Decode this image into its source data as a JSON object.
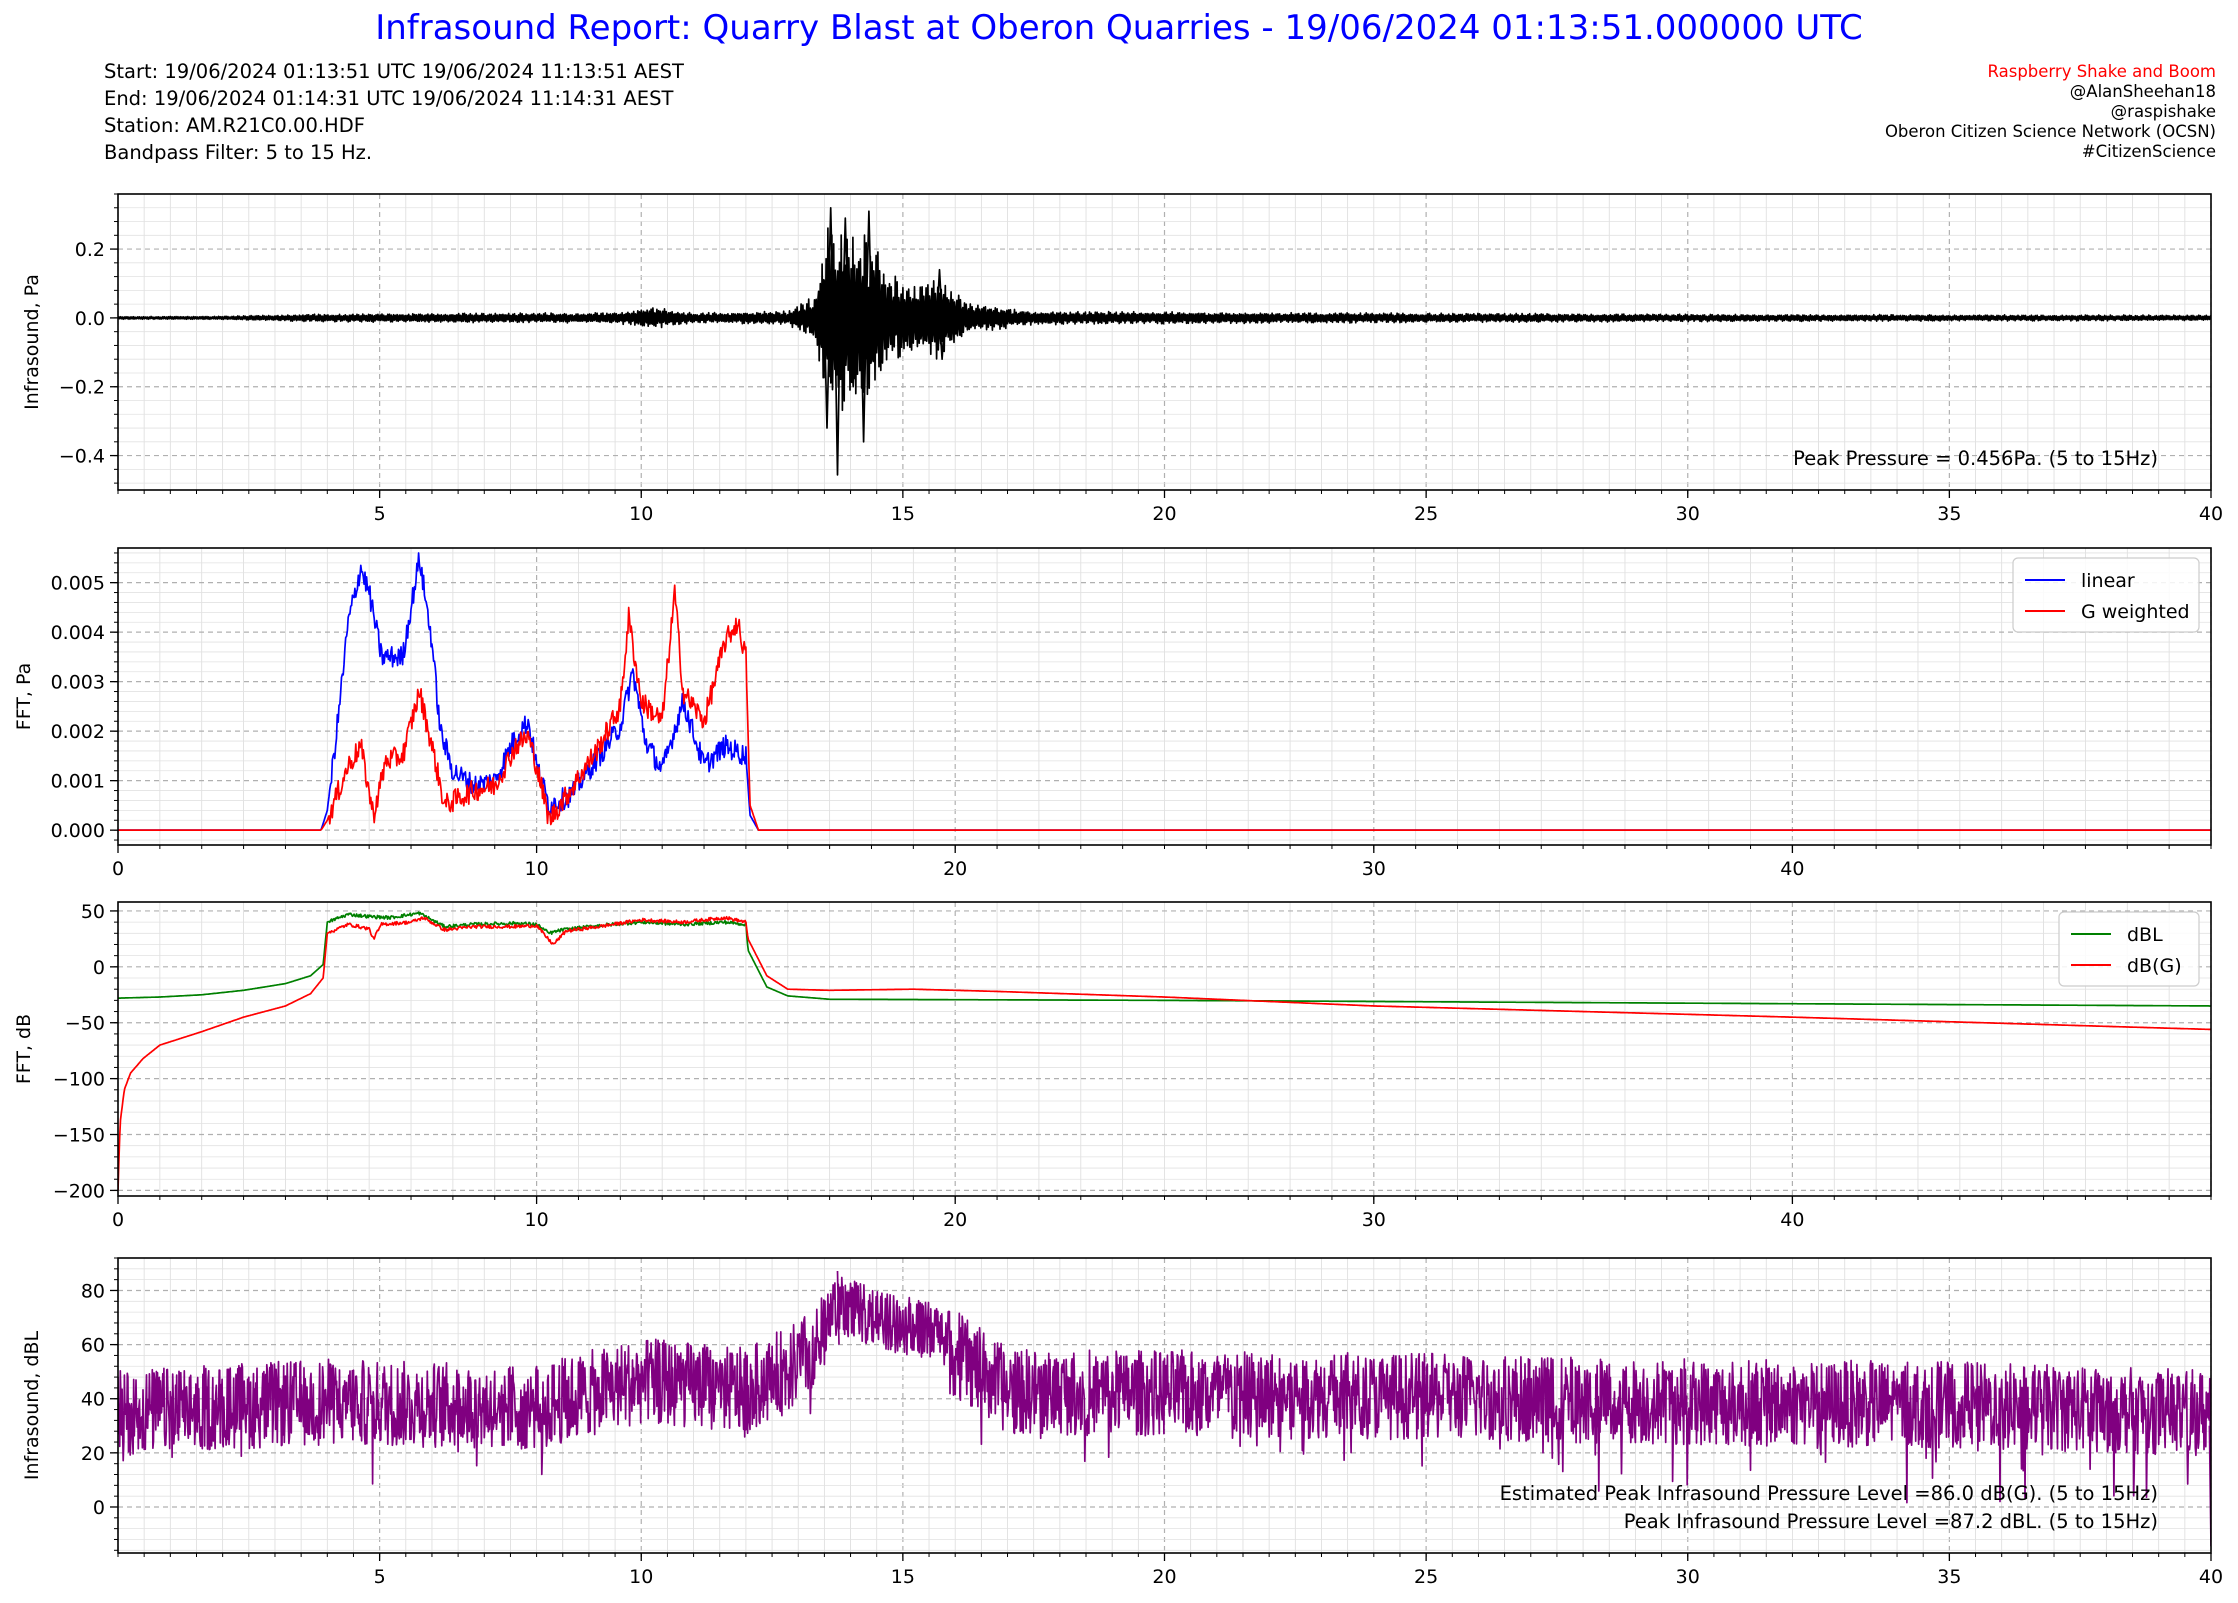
{
  "header": {
    "title": "Infrasound Report: Quarry Blast at Oberon Quarries - 19/06/2024 01:13:51.000000 UTC",
    "info_lines": [
      "Start: 19/06/2024 01:13:51 UTC   19/06/2024 11:13:51 AEST",
      "End: 19/06/2024 01:14:31 UTC   19/06/2024 11:14:31 AEST",
      "Station: AM.R21C0.00.HDF",
      "Bandpass Filter: 5 to 15 Hz."
    ],
    "credits": {
      "brand": "Raspberry Shake and Boom",
      "lines": [
        "@AlanSheehan18",
        "@raspishake",
        "Oberon Citizen Science Network (OCSN)",
        "#CitizenScience"
      ]
    }
  },
  "chart_data": [
    {
      "type": "line",
      "ylabel": "Infrasound, Pa",
      "xlim": [
        0,
        40
      ],
      "ylim": [
        -0.5,
        0.36
      ],
      "xticks": [
        5,
        10,
        15,
        20,
        25,
        30,
        35,
        40
      ],
      "yticks": [
        0.2,
        0.0,
        -0.2,
        -0.4
      ],
      "ytick_labels": [
        "0.2",
        "0.0",
        "−0.2",
        "−0.4"
      ],
      "grid": true,
      "series": [
        {
          "color": "#000000",
          "envelope": [
            [
              0,
              0.004
            ],
            [
              2,
              0.005
            ],
            [
              4,
              0.012
            ],
            [
              9.5,
              0.016
            ],
            [
              10.2,
              0.032
            ],
            [
              11,
              0.015
            ],
            [
              12.8,
              0.02
            ],
            [
              13.3,
              0.07
            ],
            [
              13.6,
              0.3
            ],
            [
              14,
              0.28
            ],
            [
              14.3,
              0.26
            ],
            [
              14.7,
              0.14
            ],
            [
              15.3,
              0.1
            ],
            [
              15.7,
              0.13
            ],
            [
              16.2,
              0.05
            ],
            [
              17.5,
              0.02
            ],
            [
              25,
              0.014
            ],
            [
              30,
              0.011
            ],
            [
              40,
              0.008
            ]
          ],
          "spikes": [
            [
              13.55,
              -0.32
            ],
            [
              13.62,
              0.32
            ],
            [
              13.75,
              -0.456
            ],
            [
              13.9,
              0.29
            ],
            [
              14.05,
              -0.2
            ],
            [
              14.25,
              -0.36
            ],
            [
              14.35,
              0.31
            ],
            [
              15.7,
              0.14
            ],
            [
              15.75,
              -0.12
            ]
          ]
        }
      ],
      "annotations": [
        "Peak Pressure = 0.456Pa. (5 to 15Hz)"
      ]
    },
    {
      "type": "line",
      "ylabel": "FFT, Pa",
      "xlim": [
        0,
        50
      ],
      "ylim": [
        -0.0003,
        0.0057
      ],
      "xticks": [
        0,
        10,
        20,
        30,
        40
      ],
      "yticks": [
        0.005,
        0.004,
        0.003,
        0.002,
        0.001,
        0.0
      ],
      "ytick_labels": [
        "0.005",
        "0.004",
        "0.003",
        "0.002",
        "0.001",
        "0.000"
      ],
      "grid": true,
      "legend": "top-right",
      "series": [
        {
          "name": "linear",
          "color": "#0000ff",
          "points": [
            [
              0,
              0
            ],
            [
              4.85,
              0
            ],
            [
              5.0,
              0.0004
            ],
            [
              5.2,
              0.0018
            ],
            [
              5.5,
              0.0042
            ],
            [
              5.8,
              0.0053
            ],
            [
              6.0,
              0.0048
            ],
            [
              6.3,
              0.0035
            ],
            [
              6.8,
              0.0035
            ],
            [
              7.2,
              0.0055
            ],
            [
              7.5,
              0.0038
            ],
            [
              7.7,
              0.002
            ],
            [
              8.0,
              0.0012
            ],
            [
              8.5,
              0.0009
            ],
            [
              9.0,
              0.001
            ],
            [
              9.5,
              0.0019
            ],
            [
              9.8,
              0.0022
            ],
            [
              10.0,
              0.0013
            ],
            [
              10.3,
              0.0005
            ],
            [
              10.8,
              0.0007
            ],
            [
              11.5,
              0.0015
            ],
            [
              12.0,
              0.0021
            ],
            [
              12.3,
              0.0032
            ],
            [
              12.6,
              0.0018
            ],
            [
              13.0,
              0.0012
            ],
            [
              13.5,
              0.0026
            ],
            [
              14.0,
              0.0013
            ],
            [
              14.5,
              0.0017
            ],
            [
              15.0,
              0.0015
            ],
            [
              15.1,
              0.0003
            ],
            [
              15.3,
              0
            ],
            [
              50,
              0
            ]
          ]
        },
        {
          "name": "G weighted",
          "color": "#ff0000",
          "points": [
            [
              0,
              0
            ],
            [
              4.85,
              0
            ],
            [
              5.0,
              0.0002
            ],
            [
              5.5,
              0.0013
            ],
            [
              5.8,
              0.0017
            ],
            [
              6.1,
              0.0003
            ],
            [
              6.4,
              0.0014
            ],
            [
              6.8,
              0.0015
            ],
            [
              7.2,
              0.0028
            ],
            [
              7.5,
              0.0017
            ],
            [
              7.8,
              0.0005
            ],
            [
              8.5,
              0.0008
            ],
            [
              9.0,
              0.0009
            ],
            [
              9.5,
              0.0017
            ],
            [
              9.8,
              0.0019
            ],
            [
              10.0,
              0.0013
            ],
            [
              10.3,
              0.0002
            ],
            [
              10.8,
              0.0008
            ],
            [
              11.5,
              0.0017
            ],
            [
              12.0,
              0.0025
            ],
            [
              12.2,
              0.0043
            ],
            [
              12.5,
              0.0026
            ],
            [
              13.0,
              0.0022
            ],
            [
              13.3,
              0.0048
            ],
            [
              13.5,
              0.0028
            ],
            [
              14.0,
              0.0022
            ],
            [
              14.5,
              0.0038
            ],
            [
              14.8,
              0.0042
            ],
            [
              15.0,
              0.0035
            ],
            [
              15.1,
              0.0005
            ],
            [
              15.3,
              0
            ],
            [
              50,
              0
            ]
          ]
        }
      ]
    },
    {
      "type": "line",
      "ylabel": "FFT, dB",
      "xlim": [
        0,
        50
      ],
      "ylim": [
        -205,
        58
      ],
      "xticks": [
        0,
        10,
        20,
        30,
        40
      ],
      "yticks": [
        50,
        0,
        -50,
        -100,
        -150,
        -200
      ],
      "ytick_labels": [
        "50",
        "0",
        "−50",
        "−100",
        "−150",
        "−200"
      ],
      "grid": true,
      "legend": "top-right",
      "series": [
        {
          "name": "dBL",
          "color": "#008000",
          "points": [
            [
              0,
              -28
            ],
            [
              1,
              -27
            ],
            [
              2,
              -25
            ],
            [
              3,
              -21
            ],
            [
              4,
              -15
            ],
            [
              4.6,
              -8
            ],
            [
              4.9,
              2
            ],
            [
              5.0,
              40
            ],
            [
              5.5,
              47
            ],
            [
              6.0,
              45
            ],
            [
              6.5,
              44
            ],
            [
              7.2,
              48
            ],
            [
              7.8,
              36
            ],
            [
              8.5,
              38
            ],
            [
              9.5,
              39
            ],
            [
              10.0,
              38
            ],
            [
              10.3,
              30
            ],
            [
              10.6,
              33
            ],
            [
              11.5,
              37
            ],
            [
              12.5,
              40
            ],
            [
              13.5,
              38
            ],
            [
              14.5,
              40
            ],
            [
              15.0,
              38
            ],
            [
              15.05,
              15
            ],
            [
              15.5,
              -18
            ],
            [
              16,
              -26
            ],
            [
              17,
              -29
            ],
            [
              25,
              -30
            ],
            [
              30,
              -31
            ],
            [
              40,
              -33
            ],
            [
              50,
              -35
            ]
          ]
        },
        {
          "name": "dB(G)",
          "color": "#ff0000",
          "points": [
            [
              0,
              -200
            ],
            [
              0.05,
              -140
            ],
            [
              0.15,
              -110
            ],
            [
              0.3,
              -95
            ],
            [
              0.6,
              -82
            ],
            [
              1.0,
              -70
            ],
            [
              2.0,
              -58
            ],
            [
              3.0,
              -45
            ],
            [
              4.0,
              -35
            ],
            [
              4.6,
              -24
            ],
            [
              4.9,
              -10
            ],
            [
              5.0,
              30
            ],
            [
              5.5,
              38
            ],
            [
              6.0,
              34
            ],
            [
              6.1,
              25
            ],
            [
              6.3,
              38
            ],
            [
              7.0,
              40
            ],
            [
              7.3,
              44
            ],
            [
              7.8,
              33
            ],
            [
              8.5,
              36
            ],
            [
              9.5,
              36
            ],
            [
              10.0,
              37
            ],
            [
              10.2,
              28
            ],
            [
              10.4,
              20
            ],
            [
              10.7,
              32
            ],
            [
              11.5,
              36
            ],
            [
              12.5,
              42
            ],
            [
              13.5,
              40
            ],
            [
              14.5,
              44
            ],
            [
              15.0,
              40
            ],
            [
              15.05,
              25
            ],
            [
              15.5,
              -8
            ],
            [
              16,
              -20
            ],
            [
              17,
              -21
            ],
            [
              19,
              -20
            ],
            [
              21,
              -22
            ],
            [
              25,
              -27
            ],
            [
              30,
              -35
            ],
            [
              40,
              -45
            ],
            [
              50,
              -56
            ]
          ]
        }
      ]
    },
    {
      "type": "line",
      "ylabel": "Infrasound, dBL",
      "xlim": [
        0,
        40
      ],
      "ylim": [
        -17,
        92
      ],
      "xticks": [
        5,
        10,
        15,
        20,
        25,
        30,
        35,
        40
      ],
      "yticks": [
        80,
        60,
        40,
        20,
        0
      ],
      "ytick_labels": [
        "80",
        "60",
        "40",
        "20",
        "0"
      ],
      "grid": true,
      "series": [
        {
          "color": "#800080",
          "envelope": [
            [
              0,
              38
            ],
            [
              4,
              42
            ],
            [
              8,
              40
            ],
            [
              10,
              50
            ],
            [
              12,
              46
            ],
            [
              13,
              56
            ],
            [
              13.8,
              72
            ],
            [
              15,
              65
            ],
            [
              16,
              60
            ],
            [
              17,
              46
            ],
            [
              25,
              44
            ],
            [
              30,
              42
            ],
            [
              35,
              41
            ],
            [
              40,
              38
            ]
          ],
          "min": -14.5,
          "max": 87.2
        }
      ],
      "annotations": [
        "Estimated Peak Infrasound Pressure Level =86.0 dB(G). (5 to 15Hz)",
        "Peak Infrasound Pressure Level =87.2 dBL. (5 to 15Hz)"
      ]
    }
  ]
}
